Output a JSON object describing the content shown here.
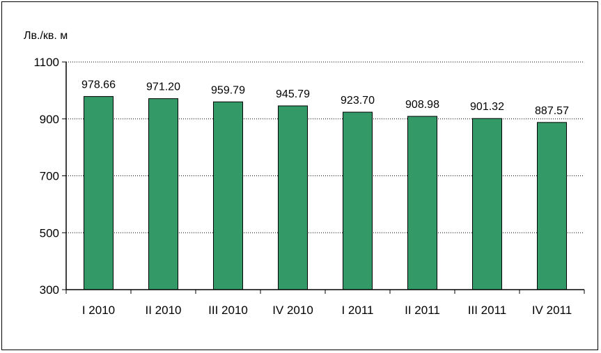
{
  "chart_data": {
    "type": "bar",
    "title": "",
    "xlabel": "",
    "ylabel": "Лв./кв. м",
    "categories": [
      "I 2010",
      "II 2010",
      "III 2010",
      "IV 2010",
      "I 2011",
      "II 2011",
      "III 2011",
      "IV 2011"
    ],
    "values": [
      978.66,
      971.2,
      959.79,
      945.79,
      923.7,
      908.98,
      901.32,
      887.57
    ],
    "value_labels": [
      "978.66",
      "971.20",
      "959.79",
      "945.79",
      "923.70",
      "908.98",
      "901.32",
      "887.57"
    ],
    "ylim": [
      300,
      1100
    ],
    "yticks": [
      300,
      500,
      700,
      900,
      1100
    ],
    "grid": "horizontal-dotted",
    "legend": "none",
    "colors": {
      "bar_fill": "#339966",
      "bar_stroke": "#000000",
      "grid": "#000000"
    }
  }
}
